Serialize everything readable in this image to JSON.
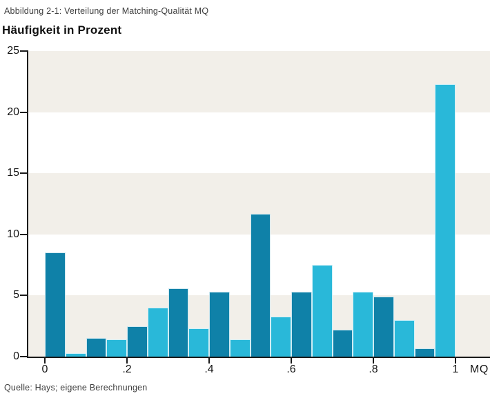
{
  "header": {
    "caption": "Abbildung 2-1: Verteilung der Matching-Qualität MQ",
    "subtitle": "Häufigkeit in Prozent"
  },
  "footer": {
    "source": "Quelle: Hays; eigene Berechnungen"
  },
  "chart_data": {
    "type": "bar",
    "title": "Abbildung 2-1: Verteilung der Matching-Qualität MQ",
    "ylabel": "Häufigkeit in Prozent",
    "xlabel": "MQ",
    "legend": "none",
    "grid": "horizontal background bands every 5 units",
    "ylim": [
      0,
      25
    ],
    "xlim": [
      0,
      1
    ],
    "bin_start": 0,
    "bin_width": 0.05,
    "values": [
      8.5,
      0.3,
      1.5,
      1.4,
      2.5,
      4.0,
      5.6,
      2.3,
      5.3,
      1.4,
      11.7,
      3.3,
      5.3,
      7.5,
      2.2,
      5.3,
      4.9,
      3.0,
      0.7,
      22.3
    ],
    "bar_color_pattern": "alternating, first bar dark",
    "bar_colors": {
      "dark": "#0f81a8",
      "light": "#29b8d9"
    },
    "band_colors": {
      "shaded": "#f2efe9",
      "plain": "#ffffff"
    },
    "axis_color": "#1a1a1a",
    "y_ticks": [
      {
        "v": 0,
        "label": "0"
      },
      {
        "v": 5,
        "label": "5"
      },
      {
        "v": 10,
        "label": "10"
      },
      {
        "v": 15,
        "label": "15"
      },
      {
        "v": 20,
        "label": "20"
      },
      {
        "v": 25,
        "label": "25"
      }
    ],
    "x_ticks": [
      {
        "v": 0,
        "label": "0"
      },
      {
        "v": 0.2,
        "label": ".2"
      },
      {
        "v": 0.4,
        "label": ".4"
      },
      {
        "v": 0.6,
        "label": ".6"
      },
      {
        "v": 0.8,
        "label": ".8"
      },
      {
        "v": 1,
        "label": "1"
      }
    ]
  }
}
